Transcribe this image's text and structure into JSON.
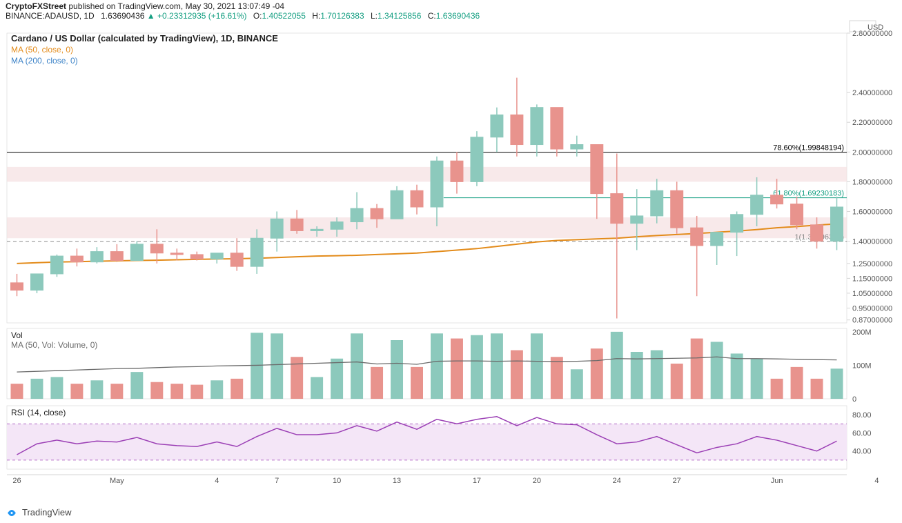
{
  "header": {
    "publisher": "CryptoFXStreet",
    "published_on": "published on TradingView.com,",
    "datetime": "May 30, 2021 13:07:49 -04",
    "symbol": "BINANCE:ADAUSD, 1D",
    "last": "1.63690436",
    "change": "+0.23312935",
    "change_pct": "(+16.61%)",
    "O": "1.40522055",
    "H": "1.70126383",
    "L": "1.34125856",
    "C": "1.63690436"
  },
  "legend": {
    "title": "Cardano / US Dollar (calculated by TradingView), 1D, BINANCE",
    "ma50": "MA (50, close, 0)",
    "ma200": "MA (200, close, 0)"
  },
  "colors": {
    "up": "#8cc9bc",
    "down": "#e8938d",
    "up_dark": "#159f82",
    "down_dark": "#ce4848",
    "ma": "#e38b1a",
    "vol_ma": "#6a6a6a",
    "rsi": "#9b3fb5",
    "rsi_fill": "#f4e6f7",
    "grid": "#d6d6d6",
    "axis_text": "#555",
    "zone": "#f5e0e1",
    "fib618": "#159f82",
    "fib786": "#000000",
    "fib1": "#888888"
  },
  "price_chart": {
    "y_axis_label": "USD",
    "y_ticks": [
      "2.80000000",
      "2.40000000",
      "2.20000000",
      "2.00000000",
      "1.80000000",
      "1.60000000",
      "1.40000000",
      "1.25000000",
      "1.15000000",
      "1.05000000",
      "0.95000000",
      "0.87000000"
    ],
    "x_ticks": [
      "26",
      "May",
      "4",
      "7",
      "10",
      "13",
      "17",
      "20",
      "24",
      "27",
      "Jun",
      "4"
    ],
    "zones": [
      {
        "from": 1.8,
        "to": 1.9
      },
      {
        "from": 1.42,
        "to": 1.56
      }
    ],
    "fib_lines": [
      {
        "label": "78.60%(1.99848194)",
        "level": "78.60%",
        "value": 1.998,
        "color_key": "fib786",
        "clip_pct": 0.0
      },
      {
        "label": "61.80%(1.69230183)",
        "level": "61.80%",
        "value": 1.692,
        "color_key": "fib618",
        "clip_pct": 0.52
      },
      {
        "label": "1(1.39796354)",
        "level": "1",
        "value": 1.398,
        "color_key": "fib1",
        "clip_pct": 0.0,
        "dashed": true
      }
    ],
    "candles": [
      {
        "o": 1.12,
        "h": 1.18,
        "l": 1.03,
        "c": 1.07
      },
      {
        "o": 1.07,
        "h": 1.18,
        "l": 1.05,
        "c": 1.18
      },
      {
        "o": 1.18,
        "h": 1.31,
        "l": 1.16,
        "c": 1.3
      },
      {
        "o": 1.3,
        "h": 1.35,
        "l": 1.23,
        "c": 1.26
      },
      {
        "o": 1.26,
        "h": 1.36,
        "l": 1.25,
        "c": 1.33
      },
      {
        "o": 1.33,
        "h": 1.38,
        "l": 1.26,
        "c": 1.27
      },
      {
        "o": 1.27,
        "h": 1.4,
        "l": 1.27,
        "c": 1.38
      },
      {
        "o": 1.38,
        "h": 1.48,
        "l": 1.25,
        "c": 1.32
      },
      {
        "o": 1.32,
        "h": 1.35,
        "l": 1.27,
        "c": 1.31
      },
      {
        "o": 1.31,
        "h": 1.33,
        "l": 1.27,
        "c": 1.28
      },
      {
        "o": 1.28,
        "h": 1.32,
        "l": 1.25,
        "c": 1.32
      },
      {
        "o": 1.32,
        "h": 1.42,
        "l": 1.2,
        "c": 1.23
      },
      {
        "o": 1.23,
        "h": 1.48,
        "l": 1.18,
        "c": 1.42
      },
      {
        "o": 1.42,
        "h": 1.6,
        "l": 1.33,
        "c": 1.55
      },
      {
        "o": 1.55,
        "h": 1.61,
        "l": 1.45,
        "c": 1.47
      },
      {
        "o": 1.47,
        "h": 1.5,
        "l": 1.43,
        "c": 1.48
      },
      {
        "o": 1.48,
        "h": 1.56,
        "l": 1.43,
        "c": 1.53
      },
      {
        "o": 1.53,
        "h": 1.73,
        "l": 1.48,
        "c": 1.62
      },
      {
        "o": 1.62,
        "h": 1.65,
        "l": 1.49,
        "c": 1.55
      },
      {
        "o": 1.55,
        "h": 1.77,
        "l": 1.55,
        "c": 1.74
      },
      {
        "o": 1.74,
        "h": 1.78,
        "l": 1.58,
        "c": 1.63
      },
      {
        "o": 1.63,
        "h": 1.97,
        "l": 1.5,
        "c": 1.94
      },
      {
        "o": 1.94,
        "h": 2.0,
        "l": 1.72,
        "c": 1.8
      },
      {
        "o": 1.8,
        "h": 2.14,
        "l": 1.77,
        "c": 2.1
      },
      {
        "o": 2.1,
        "h": 2.3,
        "l": 2.0,
        "c": 2.25
      },
      {
        "o": 2.25,
        "h": 2.5,
        "l": 1.97,
        "c": 2.05
      },
      {
        "o": 2.05,
        "h": 2.32,
        "l": 1.97,
        "c": 2.3
      },
      {
        "o": 2.3,
        "h": 2.3,
        "l": 1.97,
        "c": 2.02
      },
      {
        "o": 2.02,
        "h": 2.11,
        "l": 1.97,
        "c": 2.05
      },
      {
        "o": 2.05,
        "h": 2.05,
        "l": 1.55,
        "c": 1.72
      },
      {
        "o": 1.72,
        "h": 1.99,
        "l": 0.88,
        "c": 1.52
      },
      {
        "o": 1.52,
        "h": 1.75,
        "l": 1.34,
        "c": 1.57
      },
      {
        "o": 1.57,
        "h": 1.82,
        "l": 1.52,
        "c": 1.74
      },
      {
        "o": 1.74,
        "h": 1.8,
        "l": 1.45,
        "c": 1.49
      },
      {
        "o": 1.49,
        "h": 1.57,
        "l": 1.03,
        "c": 1.37
      },
      {
        "o": 1.37,
        "h": 1.46,
        "l": 1.24,
        "c": 1.46
      },
      {
        "o": 1.46,
        "h": 1.6,
        "l": 1.3,
        "c": 1.58
      },
      {
        "o": 1.58,
        "h": 1.83,
        "l": 1.5,
        "c": 1.71
      },
      {
        "o": 1.71,
        "h": 1.82,
        "l": 1.62,
        "c": 1.65
      },
      {
        "o": 1.65,
        "h": 1.7,
        "l": 1.48,
        "c": 1.51
      },
      {
        "o": 1.51,
        "h": 1.56,
        "l": 1.35,
        "c": 1.4
      },
      {
        "o": 1.4,
        "h": 1.7,
        "l": 1.34,
        "c": 1.63
      }
    ],
    "ma50": [
      1.25,
      1.255,
      1.26,
      1.262,
      1.265,
      1.268,
      1.27,
      1.272,
      1.275,
      1.278,
      1.28,
      1.282,
      1.285,
      1.29,
      1.295,
      1.3,
      1.302,
      1.305,
      1.31,
      1.315,
      1.32,
      1.33,
      1.34,
      1.35,
      1.365,
      1.38,
      1.395,
      1.405,
      1.41,
      1.415,
      1.42,
      1.43,
      1.438,
      1.445,
      1.452,
      1.46,
      1.468,
      1.478,
      1.49,
      1.498,
      1.508,
      1.516
    ],
    "ma_color_index": 0
  },
  "volume": {
    "label": "Vol",
    "ma_label": "MA (50, Vol: Volume, 0)",
    "y_ticks": [
      "200M",
      "100M",
      "0"
    ],
    "bars": [
      {
        "v": 45,
        "up": false
      },
      {
        "v": 60,
        "up": true
      },
      {
        "v": 65,
        "up": true
      },
      {
        "v": 45,
        "up": false
      },
      {
        "v": 55,
        "up": true
      },
      {
        "v": 45,
        "up": false
      },
      {
        "v": 80,
        "up": true
      },
      {
        "v": 50,
        "up": false
      },
      {
        "v": 45,
        "up": false
      },
      {
        "v": 42,
        "up": false
      },
      {
        "v": 55,
        "up": true
      },
      {
        "v": 60,
        "up": false
      },
      {
        "v": 197,
        "up": true
      },
      {
        "v": 195,
        "up": true
      },
      {
        "v": 125,
        "up": false
      },
      {
        "v": 65,
        "up": true
      },
      {
        "v": 120,
        "up": true
      },
      {
        "v": 195,
        "up": true
      },
      {
        "v": 95,
        "up": false
      },
      {
        "v": 175,
        "up": true
      },
      {
        "v": 95,
        "up": false
      },
      {
        "v": 195,
        "up": true
      },
      {
        "v": 180,
        "up": false
      },
      {
        "v": 190,
        "up": true
      },
      {
        "v": 195,
        "up": true
      },
      {
        "v": 145,
        "up": false
      },
      {
        "v": 195,
        "up": true
      },
      {
        "v": 125,
        "up": false
      },
      {
        "v": 88,
        "up": true
      },
      {
        "v": 150,
        "up": false
      },
      {
        "v": 200,
        "up": true
      },
      {
        "v": 140,
        "up": true
      },
      {
        "v": 145,
        "up": true
      },
      {
        "v": 105,
        "up": false
      },
      {
        "v": 180,
        "up": false
      },
      {
        "v": 170,
        "up": true
      },
      {
        "v": 135,
        "up": true
      },
      {
        "v": 120,
        "up": true
      },
      {
        "v": 60,
        "up": false
      },
      {
        "v": 95,
        "up": false
      },
      {
        "v": 60,
        "up": false
      },
      {
        "v": 90,
        "up": true
      }
    ],
    "ma": [
      80,
      82,
      84,
      86,
      88,
      90,
      91,
      93,
      95,
      96,
      98,
      99,
      100,
      102,
      104,
      106,
      108,
      110,
      104,
      106,
      103,
      112,
      113,
      113,
      112,
      113,
      112,
      111,
      112,
      114,
      120,
      119,
      120,
      121,
      122,
      125,
      120,
      120,
      119,
      118,
      117,
      116
    ]
  },
  "rsi": {
    "label": "RSI (14, close)",
    "y_ticks": [
      "80.00",
      "60.00",
      "40.00"
    ],
    "upper": 70,
    "lower": 30,
    "data": [
      36,
      48,
      52,
      48,
      51,
      50,
      55,
      48,
      46,
      45,
      50,
      45,
      56,
      65,
      58,
      58,
      60,
      68,
      62,
      72,
      64,
      75,
      70,
      75,
      78,
      68,
      77,
      70,
      69,
      58,
      48,
      50,
      56,
      47,
      38,
      44,
      48,
      56,
      52,
      46,
      40,
      51
    ]
  },
  "footer": {
    "brand": "TradingView"
  }
}
